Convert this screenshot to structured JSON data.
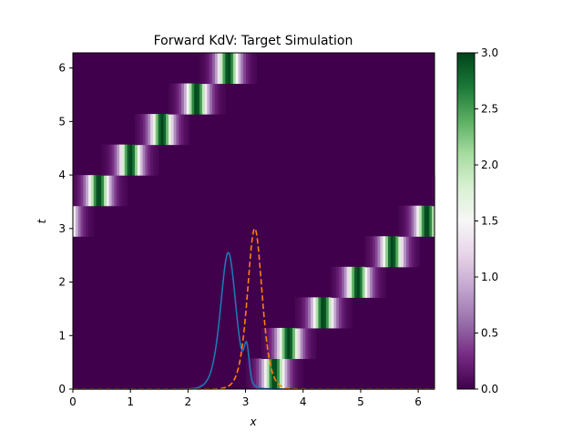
{
  "chart_data": {
    "type": "heatmap",
    "title": "Forward KdV: Target Simulation",
    "xlabel": "x",
    "ylabel": "t",
    "xlim": [
      0,
      6.283
    ],
    "ylim": [
      0,
      6.283
    ],
    "x_ticks": [
      "0",
      "1",
      "2",
      "3",
      "4",
      "5",
      "6"
    ],
    "y_ticks": [
      "0",
      "1",
      "2",
      "3",
      "4",
      "5",
      "6"
    ],
    "colorbar": {
      "range": [
        0,
        3.0
      ],
      "ticks": [
        "0.0",
        "0.5",
        "1.0",
        "1.5",
        "2.0",
        "2.5",
        "3.0"
      ],
      "colormap": "PRGn",
      "colors": [
        "#40004b",
        "#762a83",
        "#9970ab",
        "#c2a5cf",
        "#e7d4e8",
        "#f7f7f7",
        "#d9f0d3",
        "#a6dba0",
        "#5aae61",
        "#1b7837",
        "#00441b"
      ]
    },
    "heatmap": {
      "soliton_amplitude": 3.0,
      "soliton_width": 0.17,
      "trajectory": [
        {
          "t": 0.0,
          "x": 3.5
        },
        {
          "t": 0.625,
          "x": 3.75
        },
        {
          "t": 1.25,
          "x": 4.35
        },
        {
          "t": 1.875,
          "x": 4.95
        },
        {
          "t": 2.5,
          "x": 5.55
        },
        {
          "t": 3.125,
          "x": 6.15
        },
        {
          "t": 3.75,
          "x": 0.45
        },
        {
          "t": 4.375,
          "x": 1.0
        },
        {
          "t": 5.0,
          "x": 1.55
        },
        {
          "t": 5.625,
          "x": 2.15
        },
        {
          "t": 6.25,
          "x": 2.7
        }
      ]
    },
    "series": [
      {
        "style": "solid",
        "color": "#1f77b4",
        "center": 2.7,
        "amplitude": 2.55,
        "width": 0.18,
        "bump_center": 3.02,
        "bump_amplitude": 0.6,
        "bump_width": 0.06
      },
      {
        "style": "dashed",
        "color": "#ff7f0e",
        "center": 3.16,
        "amplitude": 3.0,
        "width": 0.17
      }
    ]
  }
}
